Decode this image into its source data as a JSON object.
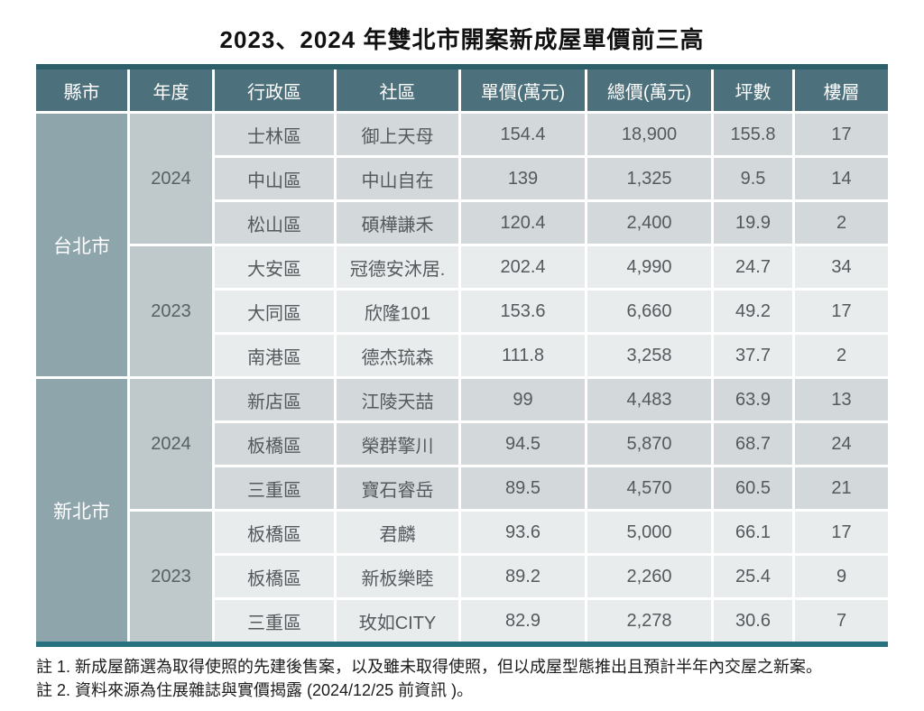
{
  "chart_data": {
    "type": "table",
    "title": "2023、2024 年雙北市開案新成屋單價前三高",
    "columns": [
      "縣市",
      "年度",
      "行政區",
      "社區",
      "單價(萬元)",
      "總價(萬元)",
      "坪數",
      "樓層"
    ],
    "groups": [
      {
        "city": "台北市",
        "years": [
          {
            "year": "2024",
            "rows": [
              [
                "士林區",
                "御上天母",
                "154.4",
                "18,900",
                "155.8",
                "17"
              ],
              [
                "中山區",
                "中山自在",
                "139",
                "1,325",
                "9.5",
                "14"
              ],
              [
                "松山區",
                "碩樺謙禾",
                "120.4",
                "2,400",
                "19.9",
                "2"
              ]
            ]
          },
          {
            "year": "2023",
            "rows": [
              [
                "大安區",
                "冠德安沐居.",
                "202.4",
                "4,990",
                "24.7",
                "34"
              ],
              [
                "大同區",
                "欣隆101",
                "153.6",
                "6,660",
                "49.2",
                "17"
              ],
              [
                "南港區",
                "德杰琉森",
                "111.8",
                "3,258",
                "37.7",
                "2"
              ]
            ]
          }
        ]
      },
      {
        "city": "新北市",
        "years": [
          {
            "year": "2024",
            "rows": [
              [
                "新店區",
                "江陵天喆",
                "99",
                "4,483",
                "63.9",
                "13"
              ],
              [
                "板橋區",
                "榮群擎川",
                "94.5",
                "5,870",
                "68.7",
                "24"
              ],
              [
                "三重區",
                "寶石睿岳",
                "89.5",
                "4,570",
                "60.5",
                "21"
              ]
            ]
          },
          {
            "year": "2023",
            "rows": [
              [
                "板橋區",
                "君麟",
                "93.6",
                "5,000",
                "66.1",
                "17"
              ],
              [
                "板橋區",
                "新板樂睦",
                "89.2",
                "2,260",
                "25.4",
                "9"
              ],
              [
                "三重區",
                "玫如CITY",
                "82.9",
                "2,278",
                "30.6",
                "7"
              ]
            ]
          }
        ]
      }
    ]
  },
  "notes": [
    "註 1. 新成屋篩選為取得使照的先建後售案，以及雖未取得使照，但以成屋型態推出且預計半年內交屋之新案。",
    "註 2. 資料來源為住展雜誌與實價揭露 (2024/12/25 前資訊 )。"
  ],
  "colors": {
    "border_top": "#2d5f6b",
    "border_bottom": "#26737f",
    "header_bg": "#4c717c",
    "header_text": "#ffffff",
    "city_bg": "#8fa5ac",
    "year_bg": "#bfc9cc",
    "row_2024_bg": "#d3d9db",
    "row_2023_bg": "#e9eced",
    "cell_text": "#54595d"
  }
}
